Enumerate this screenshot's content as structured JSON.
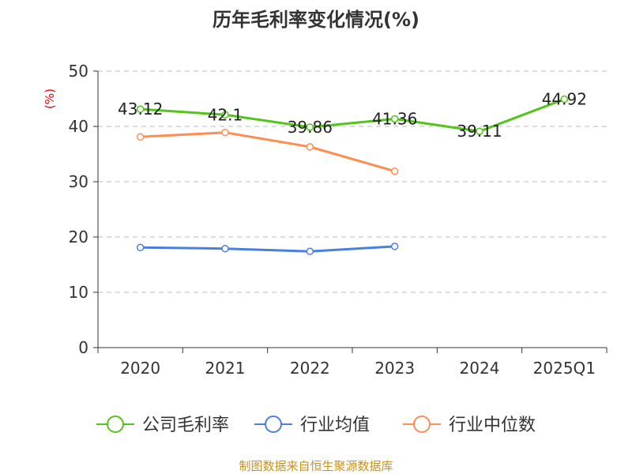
{
  "chart_data": {
    "type": "line",
    "title": "历年毛利率变化情况(%)",
    "ylabel": "(%)",
    "categories": [
      "2020",
      "2021",
      "2022",
      "2023",
      "2024",
      "2025Q1"
    ],
    "ylim": [
      0,
      50
    ],
    "yticks": [
      "0",
      "10",
      "20",
      "30",
      "40",
      "50"
    ],
    "grid": true,
    "legend_position": "bottom",
    "series": [
      {
        "name": "公司毛利率",
        "color": "#52c41a",
        "values": [
          43.12,
          42.1,
          39.86,
          41.36,
          39.11,
          44.92
        ],
        "labels": [
          "43.12",
          "42.1",
          "39.86",
          "41.36",
          "39.11",
          "44.92"
        ]
      },
      {
        "name": "行业均值",
        "color": "#4a7fe0",
        "values": [
          18.1,
          17.9,
          17.4,
          18.3,
          null,
          null
        ]
      },
      {
        "name": "行业中位数",
        "color": "#ff8c50",
        "values": [
          38.1,
          38.9,
          36.3,
          31.9,
          null,
          null
        ]
      }
    ]
  },
  "footer": "制图数据来自恒生聚源数据库"
}
